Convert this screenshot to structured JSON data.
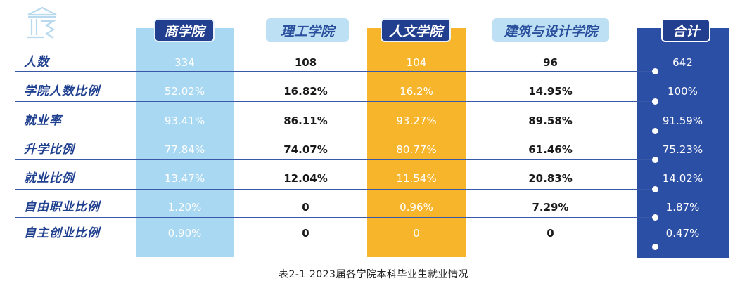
{
  "colors": {
    "business_col": "#a9d8f2",
    "humanities_col": "#f7b52c",
    "total_col": "#2c4fa6",
    "header_dark": "#213f8e",
    "label_blue": "#1f3f8f"
  },
  "logo_icon": "university-building-icon",
  "headers": {
    "business": "商学院",
    "engineering": "理工学院",
    "humanities": "人文学院",
    "architecture": "建筑与设计学院",
    "total": "合计"
  },
  "rows": [
    {
      "label": "人数",
      "business": "334",
      "engineering": "108",
      "humanities": "104",
      "architecture": "96",
      "total": "642"
    },
    {
      "label": "学院人数比例",
      "business": "52.02%",
      "engineering": "16.82%",
      "humanities": "16.2%",
      "architecture": "14.95%",
      "total": "100%"
    },
    {
      "label": "就业率",
      "business": "93.41%",
      "engineering": "86.11%",
      "humanities": "93.27%",
      "architecture": "89.58%",
      "total": "91.59%"
    },
    {
      "label": "升学比例",
      "business": "77.84%",
      "engineering": "74.07%",
      "humanities": "80.77%",
      "architecture": "61.46%",
      "total": "75.23%"
    },
    {
      "label": "就业比例",
      "business": "13.47%",
      "engineering": "12.04%",
      "humanities": "11.54%",
      "architecture": "20.83%",
      "total": "14.02%"
    },
    {
      "label": "自由职业比例",
      "business": "1.20%",
      "engineering": "0",
      "humanities": "0.96%",
      "architecture": "7.29%",
      "total": "1.87%"
    },
    {
      "label": "自主创业比例",
      "business": "0.90%",
      "engineering": "0",
      "humanities": "0",
      "architecture": "0",
      "total": "0.47%"
    }
  ],
  "caption": "表2-1 2023届各学院本科毕业生就业情况"
}
